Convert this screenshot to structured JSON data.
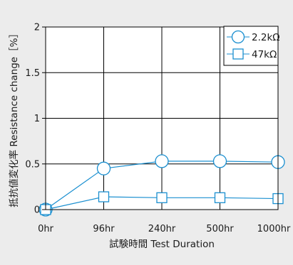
{
  "chart_data": {
    "type": "line",
    "categories": [
      "0hr",
      "96hr",
      "240hr",
      "500hr",
      "1000hr"
    ],
    "series": [
      {
        "name": "2.2kΩ",
        "marker": "circle",
        "values": [
          0,
          0.45,
          0.53,
          0.53,
          0.52
        ]
      },
      {
        "name": "47kΩ",
        "marker": "square",
        "values": [
          0,
          0.14,
          0.13,
          0.13,
          0.12
        ]
      }
    ],
    "y_ticks": [
      "0",
      "0.5",
      "1",
      "1.5",
      "2"
    ],
    "ylim": [
      0,
      2
    ],
    "xlabel": "試験時間 Test Duration",
    "ylabel": "抵抗値変化率 Resistance change［%］",
    "legend_position": "top-right",
    "grid": true,
    "colors": {
      "series": "#1a8fd0",
      "grid": "#000000",
      "background": "#ececec",
      "plot_background": "#ffffff"
    }
  }
}
